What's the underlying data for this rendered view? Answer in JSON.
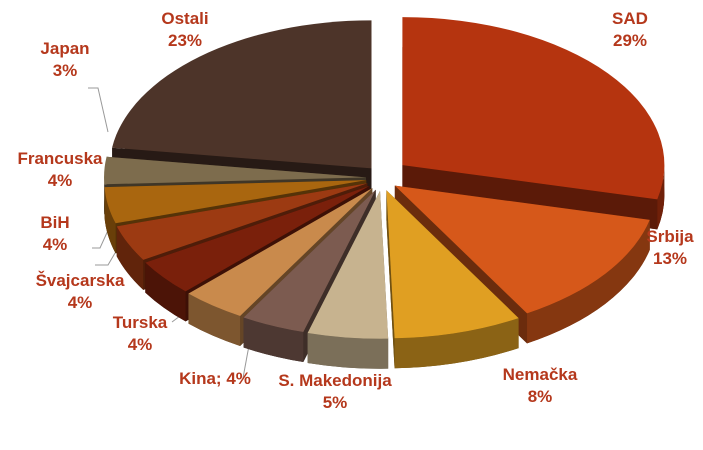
{
  "chart_data": {
    "type": "pie3d",
    "categories": [
      "SAD",
      "Srbija",
      "Nemačka",
      "S. Makedonija",
      "Kina;",
      "Turska",
      "Švajcarska",
      "BiH",
      "Francuska",
      "Japan",
      "Ostali"
    ],
    "values": [
      29,
      13,
      8,
      5,
      4,
      4,
      4,
      4,
      4,
      3,
      23
    ],
    "value_labels": [
      "29%",
      "13%",
      "8%",
      "5%",
      "4%",
      "4%",
      "4%",
      "4%",
      "4%",
      "3%",
      "23%"
    ],
    "colors": [
      "#b5340f",
      "#d6581a",
      "#e09f22",
      "#c7b38f",
      "#7c5b50",
      "#c98a4c",
      "#7a200b",
      "#9c3a12",
      "#a9660f",
      "#7d6c4d",
      "#4d3429"
    ]
  }
}
